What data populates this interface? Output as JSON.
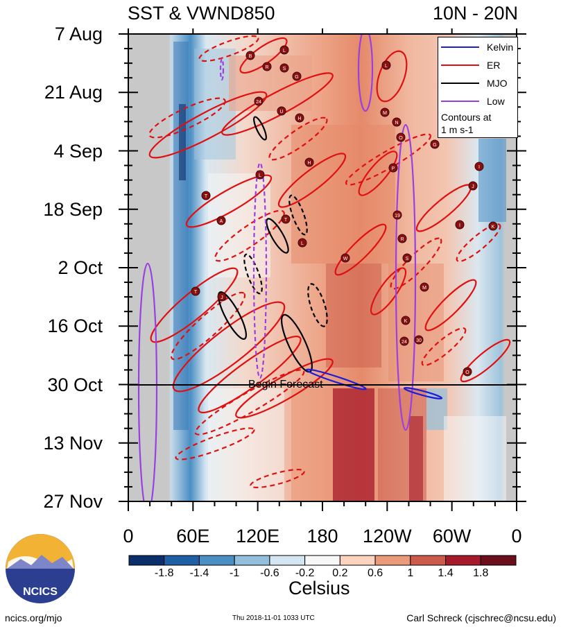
{
  "header": {
    "title_left": "SST & VWND850",
    "title_right": "10N - 20N"
  },
  "chart_data": {
    "type": "heatmap",
    "title": "SST & VWND850",
    "region": "10N - 20N",
    "xlabel": "",
    "ylabel": "",
    "x_ticks": [
      "0",
      "60E",
      "120E",
      "180",
      "120W",
      "60W",
      "0"
    ],
    "x_range": [
      0,
      360
    ],
    "y_ticks": [
      "7 Aug",
      "21 Aug",
      "4 Sep",
      "18 Sep",
      "2 Oct",
      "16 Oct",
      "30 Oct",
      "13 Nov",
      "27 Nov"
    ],
    "y_range": [
      "2018-08-07",
      "2018-11-27"
    ],
    "y_reversed": true,
    "forecast_start": "2018-10-30",
    "forecast_label": "Begin Forecast",
    "colorbar": {
      "label": "Celsius",
      "ticks": [
        "-1.8",
        "-1.4",
        "-1",
        "-0.6",
        "-0.2",
        "0.2",
        "0.6",
        "1",
        "1.4",
        "1.8"
      ],
      "colors": [
        "#0b2f6b",
        "#1f5fa6",
        "#4b8ec4",
        "#92c0dc",
        "#d2e5f0",
        "#f7f7f7",
        "#fbd3bf",
        "#eb9a7a",
        "#cc5b4b",
        "#a61a2b",
        "#6b0f1c"
      ]
    },
    "legend": [
      {
        "name": "Kelvin",
        "color": "#1d1dd6"
      },
      {
        "name": "ER",
        "color": "#e01010"
      },
      {
        "name": "MJO",
        "color": "#000000"
      },
      {
        "name": "Low",
        "color": "#9a3fe0"
      }
    ],
    "legend_note": [
      "Contours at",
      "1 m s-1"
    ],
    "storm_labels": [
      "B",
      "L",
      "R",
      "S",
      "G",
      "24",
      "U",
      "H",
      "L",
      "L",
      "M",
      "N",
      "O",
      "G",
      "P",
      "I",
      "H",
      "J",
      "T",
      "19",
      "A",
      "K",
      "I",
      "T",
      "R",
      "S",
      "W",
      "L",
      "M",
      "J",
      "T",
      "K",
      "24",
      "30",
      "O"
    ]
  },
  "footer": {
    "url": "ncics.org/mjo",
    "timestamp": "Thu 2018-11-01 1033 UTC",
    "credit": "Carl Schreck (cjschrec@ncsu.edu)",
    "logo_text": "NCICS"
  }
}
